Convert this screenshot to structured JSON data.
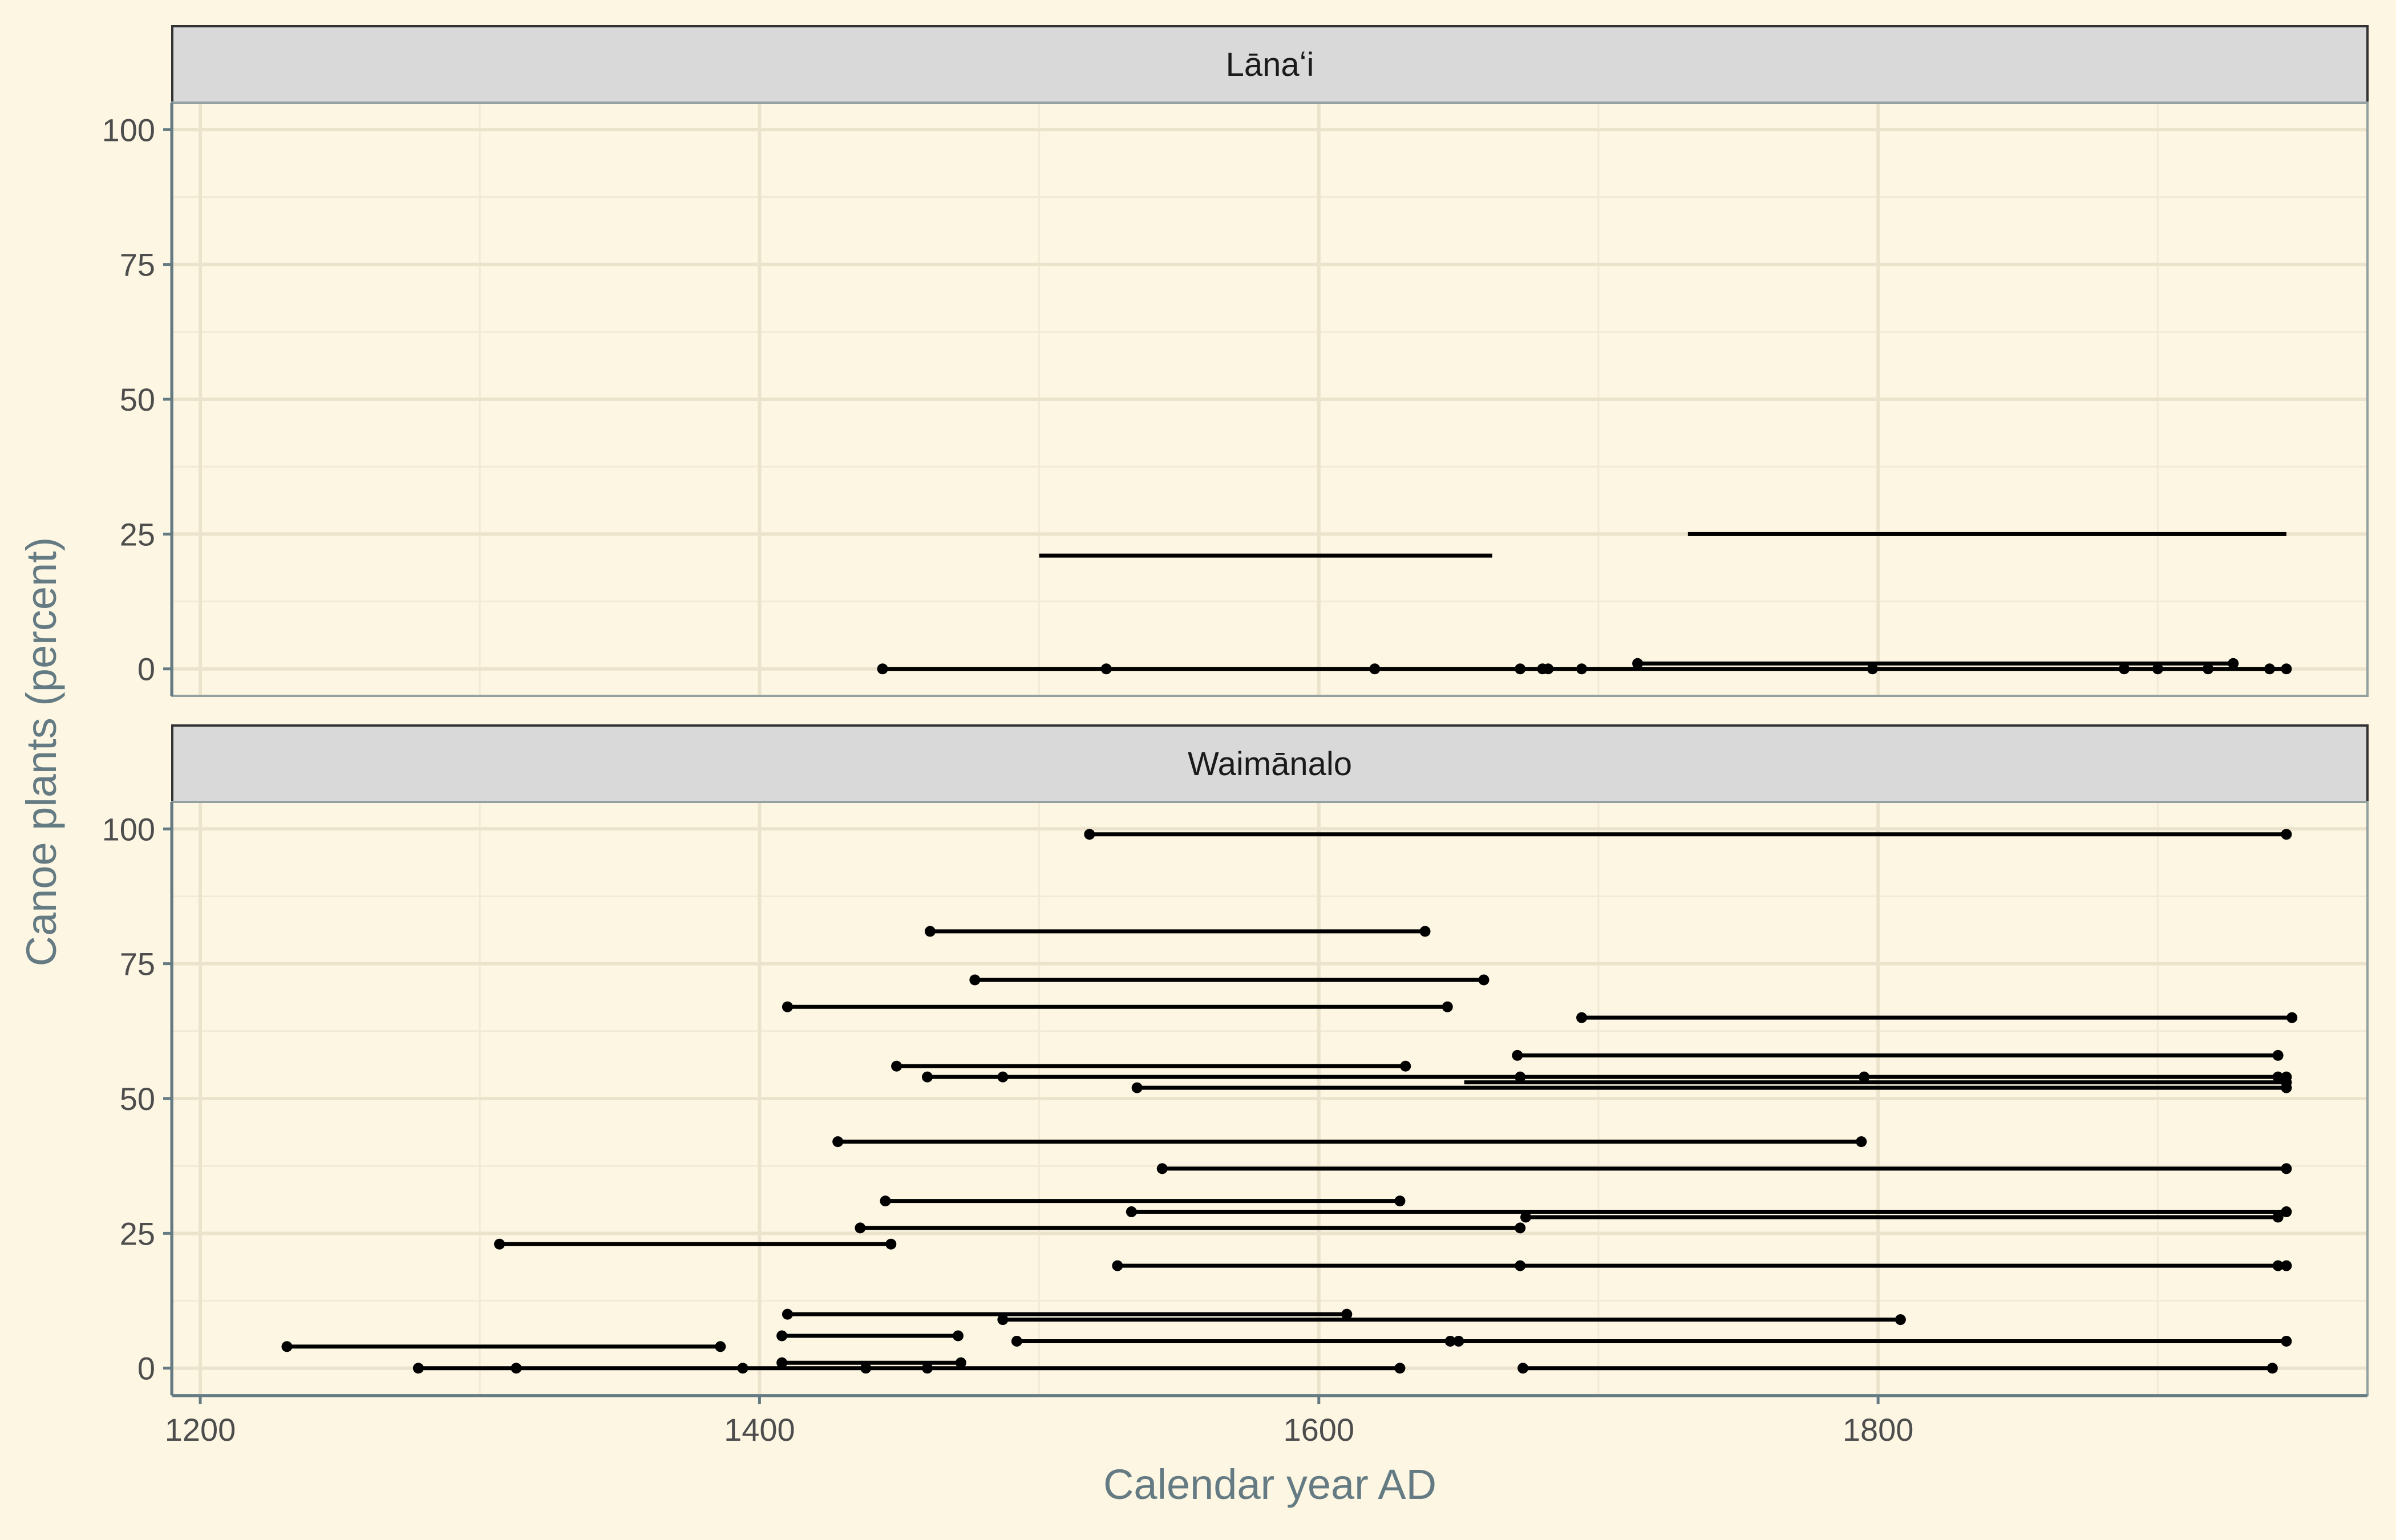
{
  "chart_data": {
    "type": "line",
    "xlabel": "Calendar year AD",
    "ylabel": "Canoe plants (percent)",
    "xlim": [
      1190,
      1975
    ],
    "ylim": [
      -5,
      105
    ],
    "x_ticks": [
      1200,
      1400,
      1600,
      1800
    ],
    "y_ticks": [
      0,
      25,
      50,
      75,
      100
    ],
    "grid": true,
    "background": "#fdf6e3",
    "strip_fill": "#d9d9d9",
    "segment_color": "#000000",
    "axis_color": "#657b83",
    "panels": [
      {
        "title": "Lānaʻi",
        "segments": [
          {
            "x": [
              1500,
              1662
            ],
            "y": [
              21,
              21
            ]
          },
          {
            "x": [
              1732,
              1946
            ],
            "y": [
              25,
              25
            ]
          },
          {
            "x": [
              1444,
              1946
            ],
            "y": [
              0,
              0
            ]
          },
          {
            "x": [
              1714,
              1927
            ],
            "y": [
              1,
              1
            ]
          }
        ],
        "points": [
          {
            "x": 1444,
            "y": 0
          },
          {
            "x": 1524,
            "y": 0
          },
          {
            "x": 1620,
            "y": 0
          },
          {
            "x": 1672,
            "y": 0
          },
          {
            "x": 1680,
            "y": 0
          },
          {
            "x": 1682,
            "y": 0
          },
          {
            "x": 1694,
            "y": 0
          },
          {
            "x": 1714,
            "y": 1
          },
          {
            "x": 1798,
            "y": 0
          },
          {
            "x": 1888,
            "y": 0
          },
          {
            "x": 1900,
            "y": 0
          },
          {
            "x": 1918,
            "y": 0
          },
          {
            "x": 1927,
            "y": 1
          },
          {
            "x": 1940,
            "y": 0
          },
          {
            "x": 1946,
            "y": 0
          }
        ]
      },
      {
        "title": "Waimānalo",
        "segments": [
          {
            "x": [
              1518,
              1946
            ],
            "y": [
              99,
              99
            ]
          },
          {
            "x": [
              1461,
              1638
            ],
            "y": [
              81,
              81
            ]
          },
          {
            "x": [
              1477,
              1659
            ],
            "y": [
              72,
              72
            ]
          },
          {
            "x": [
              1410,
              1646
            ],
            "y": [
              67,
              67
            ]
          },
          {
            "x": [
              1694,
              1948
            ],
            "y": [
              65,
              65
            ]
          },
          {
            "x": [
              1671,
              1943
            ],
            "y": [
              58,
              58
            ]
          },
          {
            "x": [
              1449,
              1631
            ],
            "y": [
              56,
              56
            ]
          },
          {
            "x": [
              1460,
              1946
            ],
            "y": [
              54,
              54
            ]
          },
          {
            "x": [
              1652,
              1946
            ],
            "y": [
              53,
              53
            ]
          },
          {
            "x": [
              1535,
              1946
            ],
            "y": [
              52,
              52
            ]
          },
          {
            "x": [
              1428,
              1794
            ],
            "y": [
              42,
              42
            ]
          },
          {
            "x": [
              1544,
              1946
            ],
            "y": [
              37,
              37
            ]
          },
          {
            "x": [
              1445,
              1629
            ],
            "y": [
              31,
              31
            ]
          },
          {
            "x": [
              1533,
              1946
            ],
            "y": [
              29,
              29
            ]
          },
          {
            "x": [
              1674,
              1943
            ],
            "y": [
              28,
              28
            ]
          },
          {
            "x": [
              1436,
              1672
            ],
            "y": [
              26,
              26
            ]
          },
          {
            "x": [
              1307,
              1447
            ],
            "y": [
              23,
              23
            ]
          },
          {
            "x": [
              1528,
              1946
            ],
            "y": [
              19,
              19
            ]
          },
          {
            "x": [
              1410,
              1610
            ],
            "y": [
              10,
              10
            ]
          },
          {
            "x": [
              1487,
              1808
            ],
            "y": [
              9,
              9
            ]
          },
          {
            "x": [
              1408,
              1471
            ],
            "y": [
              6,
              6
            ]
          },
          {
            "x": [
              1492,
              1946
            ],
            "y": [
              5,
              5
            ]
          },
          {
            "x": [
              1231,
              1386
            ],
            "y": [
              4,
              4
            ]
          },
          {
            "x": [
              1408,
              1472
            ],
            "y": [
              1,
              1
            ]
          },
          {
            "x": [
              1278,
              1629
            ],
            "y": [
              0,
              0
            ]
          },
          {
            "x": [
              1673,
              1941
            ],
            "y": [
              0,
              0
            ]
          }
        ],
        "points": [
          {
            "x": 1518,
            "y": 99
          },
          {
            "x": 1946,
            "y": 99
          },
          {
            "x": 1461,
            "y": 81
          },
          {
            "x": 1638,
            "y": 81
          },
          {
            "x": 1477,
            "y": 72
          },
          {
            "x": 1659,
            "y": 72
          },
          {
            "x": 1410,
            "y": 67
          },
          {
            "x": 1646,
            "y": 67
          },
          {
            "x": 1694,
            "y": 65
          },
          {
            "x": 1948,
            "y": 65
          },
          {
            "x": 1671,
            "y": 58
          },
          {
            "x": 1943,
            "y": 58
          },
          {
            "x": 1449,
            "y": 56
          },
          {
            "x": 1631,
            "y": 56
          },
          {
            "x": 1460,
            "y": 54
          },
          {
            "x": 1487,
            "y": 54
          },
          {
            "x": 1672,
            "y": 54
          },
          {
            "x": 1795,
            "y": 54
          },
          {
            "x": 1943,
            "y": 54
          },
          {
            "x": 1946,
            "y": 54
          },
          {
            "x": 1946,
            "y": 53
          },
          {
            "x": 1535,
            "y": 52
          },
          {
            "x": 1946,
            "y": 52
          },
          {
            "x": 1428,
            "y": 42
          },
          {
            "x": 1794,
            "y": 42
          },
          {
            "x": 1544,
            "y": 37
          },
          {
            "x": 1946,
            "y": 37
          },
          {
            "x": 1445,
            "y": 31
          },
          {
            "x": 1629,
            "y": 31
          },
          {
            "x": 1533,
            "y": 29
          },
          {
            "x": 1946,
            "y": 29
          },
          {
            "x": 1674,
            "y": 28
          },
          {
            "x": 1943,
            "y": 28
          },
          {
            "x": 1436,
            "y": 26
          },
          {
            "x": 1672,
            "y": 26
          },
          {
            "x": 1307,
            "y": 23
          },
          {
            "x": 1447,
            "y": 23
          },
          {
            "x": 1528,
            "y": 19
          },
          {
            "x": 1672,
            "y": 19
          },
          {
            "x": 1943,
            "y": 19
          },
          {
            "x": 1946,
            "y": 19
          },
          {
            "x": 1410,
            "y": 10
          },
          {
            "x": 1610,
            "y": 10
          },
          {
            "x": 1487,
            "y": 9
          },
          {
            "x": 1808,
            "y": 9
          },
          {
            "x": 1408,
            "y": 6
          },
          {
            "x": 1471,
            "y": 6
          },
          {
            "x": 1492,
            "y": 5
          },
          {
            "x": 1647,
            "y": 5
          },
          {
            "x": 1650,
            "y": 5
          },
          {
            "x": 1946,
            "y": 5
          },
          {
            "x": 1231,
            "y": 4
          },
          {
            "x": 1386,
            "y": 4
          },
          {
            "x": 1408,
            "y": 1
          },
          {
            "x": 1472,
            "y": 1
          },
          {
            "x": 1278,
            "y": 0
          },
          {
            "x": 1313,
            "y": 0
          },
          {
            "x": 1394,
            "y": 0
          },
          {
            "x": 1438,
            "y": 0
          },
          {
            "x": 1460,
            "y": 0
          },
          {
            "x": 1629,
            "y": 0
          },
          {
            "x": 1673,
            "y": 0
          },
          {
            "x": 1941,
            "y": 0
          }
        ]
      }
    ]
  }
}
